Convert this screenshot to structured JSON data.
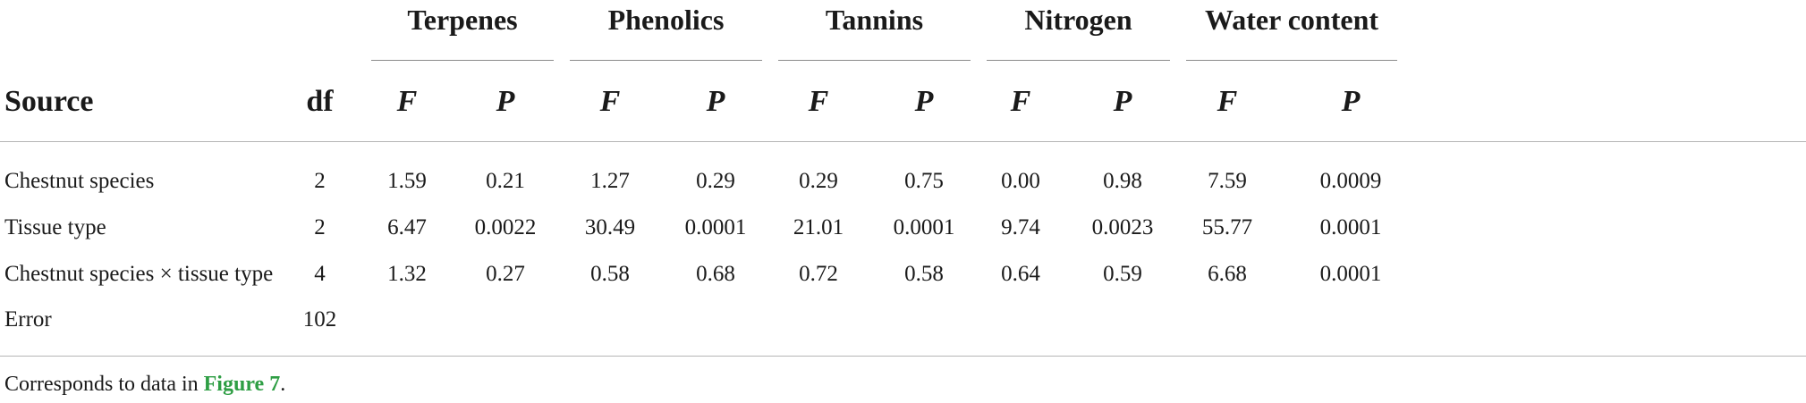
{
  "table": {
    "source_header": "Source",
    "df_header": "df",
    "groups": [
      {
        "label": "Terpenes",
        "f": "F",
        "p": "P"
      },
      {
        "label": "Phenolics",
        "f": "F",
        "p": "P"
      },
      {
        "label": "Tannins",
        "f": "F",
        "p": "P"
      },
      {
        "label": "Nitrogen",
        "f": "F",
        "p": "P"
      },
      {
        "label": "Water content",
        "f": "F",
        "p": "P"
      }
    ],
    "rows": [
      {
        "source": "Chestnut species",
        "df": "2",
        "values": [
          "1.59",
          "0.21",
          "1.27",
          "0.29",
          "0.29",
          "0.75",
          "0.00",
          "0.98",
          "7.59",
          "0.0009"
        ]
      },
      {
        "source": "Tissue type",
        "df": "2",
        "values": [
          "6.47",
          "0.0022",
          "30.49",
          "0.0001",
          "21.01",
          "0.0001",
          "9.74",
          "0.0023",
          "55.77",
          "0.0001"
        ]
      },
      {
        "source": "Chestnut species × tissue type",
        "df": "4",
        "values": [
          "1.32",
          "0.27",
          "0.58",
          "0.68",
          "0.72",
          "0.58",
          "0.64",
          "0.59",
          "6.68",
          "0.0001"
        ]
      },
      {
        "source": "Error",
        "df": "102",
        "values": [
          "",
          "",
          "",
          "",
          "",
          "",
          "",
          "",
          "",
          ""
        ]
      }
    ]
  },
  "footnote": {
    "prefix": "Corresponds to data in ",
    "link": "Figure 7",
    "suffix": "."
  },
  "colors": {
    "link": "#2e9e44",
    "rule": "#b5b5b5"
  }
}
